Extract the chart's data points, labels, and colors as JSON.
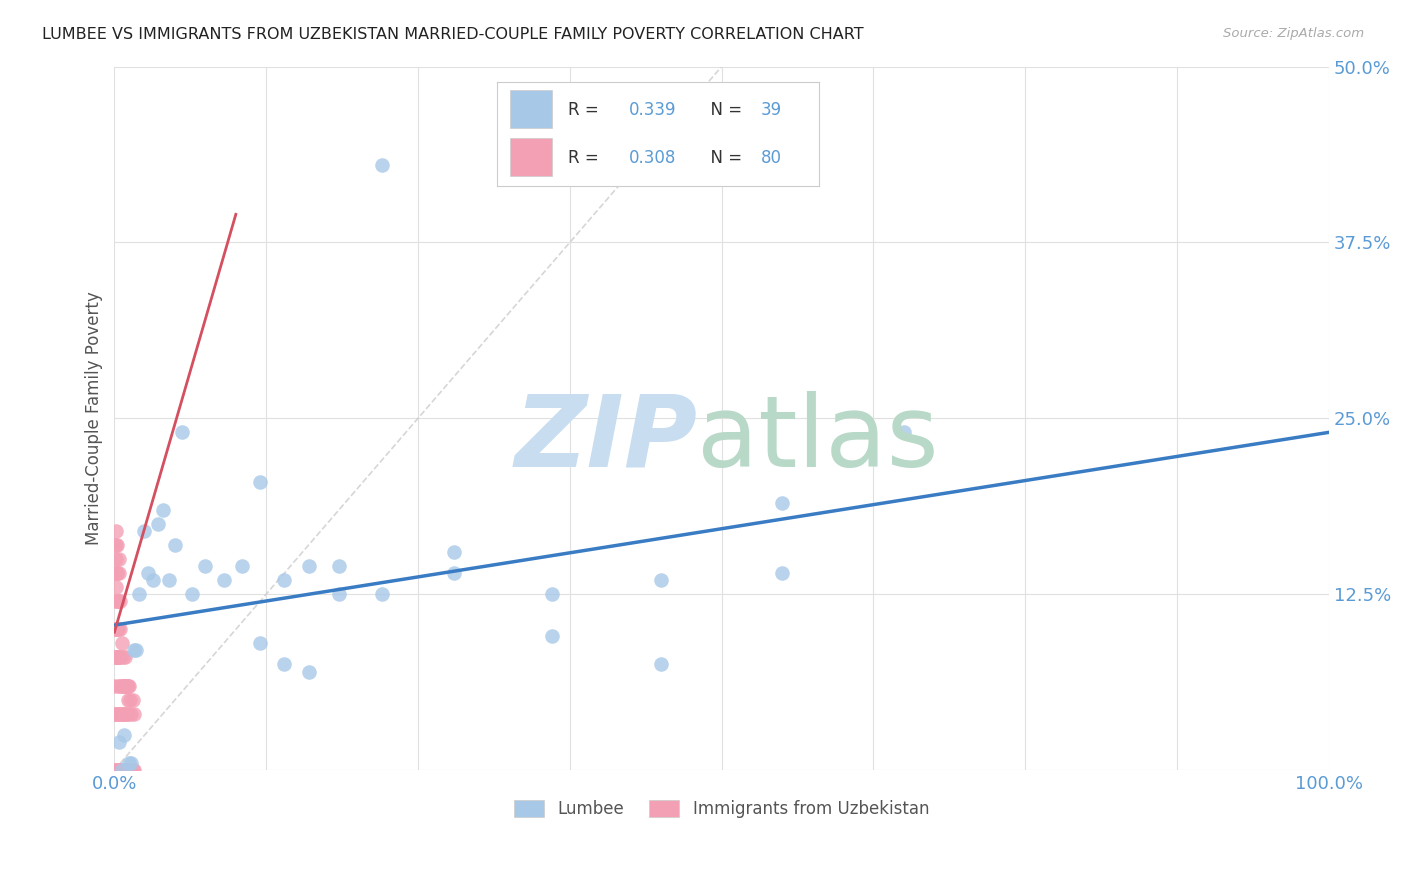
{
  "title": "LUMBEE VS IMMIGRANTS FROM UZBEKISTAN MARRIED-COUPLE FAMILY POVERTY CORRELATION CHART",
  "source": "Source: ZipAtlas.com",
  "ylabel_label": "Married-Couple Family Poverty",
  "legend_label1": "Lumbee",
  "legend_label2": "Immigrants from Uzbekistan",
  "R1": 0.339,
  "N1": 39,
  "R2": 0.308,
  "N2": 80,
  "color_lumbee": "#a8c8e8",
  "color_uzbek": "#f4a0b4",
  "color_line_lumbee": "#3a7cc4",
  "color_line_uzbek": "#d45060",
  "color_axis_tick": "#5b9bd5",
  "color_title": "#222222",
  "lumbee_x": [
    0.004,
    0.006,
    0.008,
    0.012,
    0.014,
    0.016,
    0.018,
    0.02,
    0.024,
    0.028,
    0.032,
    0.036,
    0.04,
    0.045,
    0.05,
    0.056,
    0.064,
    0.075,
    0.09,
    0.105,
    0.12,
    0.14,
    0.16,
    0.185,
    0.22,
    0.28,
    0.36,
    0.45,
    0.55,
    0.65,
    0.28,
    0.36,
    0.45,
    0.12,
    0.14,
    0.16,
    0.185,
    0.22,
    0.55
  ],
  "lumbee_y": [
    0.02,
    0.0,
    0.025,
    0.005,
    0.005,
    0.085,
    0.085,
    0.125,
    0.17,
    0.14,
    0.135,
    0.175,
    0.185,
    0.135,
    0.16,
    0.24,
    0.125,
    0.145,
    0.135,
    0.145,
    0.205,
    0.135,
    0.145,
    0.145,
    0.125,
    0.14,
    0.125,
    0.135,
    0.19,
    0.24,
    0.155,
    0.095,
    0.075,
    0.09,
    0.075,
    0.07,
    0.125,
    0.43,
    0.14
  ],
  "uzbek_x": [
    0.0,
    0.0,
    0.0005,
    0.001,
    0.001,
    0.0015,
    0.002,
    0.002,
    0.002,
    0.003,
    0.003,
    0.003,
    0.004,
    0.004,
    0.004,
    0.005,
    0.005,
    0.005,
    0.006,
    0.006,
    0.007,
    0.007,
    0.008,
    0.008,
    0.009,
    0.009,
    0.01,
    0.01,
    0.011,
    0.011,
    0.012,
    0.012,
    0.013,
    0.013,
    0.014,
    0.014,
    0.015,
    0.015,
    0.016,
    0.016,
    0.0,
    0.0,
    0.001,
    0.001,
    0.002,
    0.002,
    0.003,
    0.003,
    0.004,
    0.005,
    0.006,
    0.007,
    0.008,
    0.009,
    0.01,
    0.011,
    0.0,
    0.0,
    0.001,
    0.001,
    0.002,
    0.002,
    0.003,
    0.003,
    0.004,
    0.005,
    0.006,
    0.007,
    0.008,
    0.009,
    0.01,
    0.011,
    0.0,
    0.0,
    0.001,
    0.001,
    0.002,
    0.003,
    0.004,
    0.005
  ],
  "uzbek_y": [
    0.0,
    0.06,
    0.0,
    0.1,
    0.15,
    0.17,
    0.0,
    0.08,
    0.16,
    0.0,
    0.06,
    0.12,
    0.0,
    0.08,
    0.15,
    0.0,
    0.06,
    0.12,
    0.0,
    0.09,
    0.0,
    0.08,
    0.0,
    0.06,
    0.0,
    0.08,
    0.0,
    0.06,
    0.0,
    0.05,
    0.0,
    0.06,
    0.0,
    0.05,
    0.0,
    0.04,
    0.0,
    0.05,
    0.0,
    0.04,
    0.04,
    0.12,
    0.04,
    0.13,
    0.04,
    0.12,
    0.04,
    0.1,
    0.04,
    0.04,
    0.04,
    0.04,
    0.04,
    0.04,
    0.04,
    0.04,
    0.08,
    0.16,
    0.08,
    0.16,
    0.08,
    0.14,
    0.08,
    0.12,
    0.08,
    0.08,
    0.06,
    0.06,
    0.06,
    0.06,
    0.06,
    0.06,
    0.14,
    0.1,
    0.14,
    0.1,
    0.14,
    0.1,
    0.14,
    0.1
  ],
  "lumbee_trend": [
    0.103,
    0.24
  ],
  "uzbek_trend_x": [
    0.0,
    0.1
  ],
  "uzbek_trend_y": [
    0.098,
    0.395
  ],
  "diag_line_x": [
    0.0,
    0.5
  ],
  "diag_line_y": [
    0.0,
    0.5
  ],
  "xlim": [
    0.0,
    1.0
  ],
  "ylim": [
    0.0,
    0.5
  ]
}
